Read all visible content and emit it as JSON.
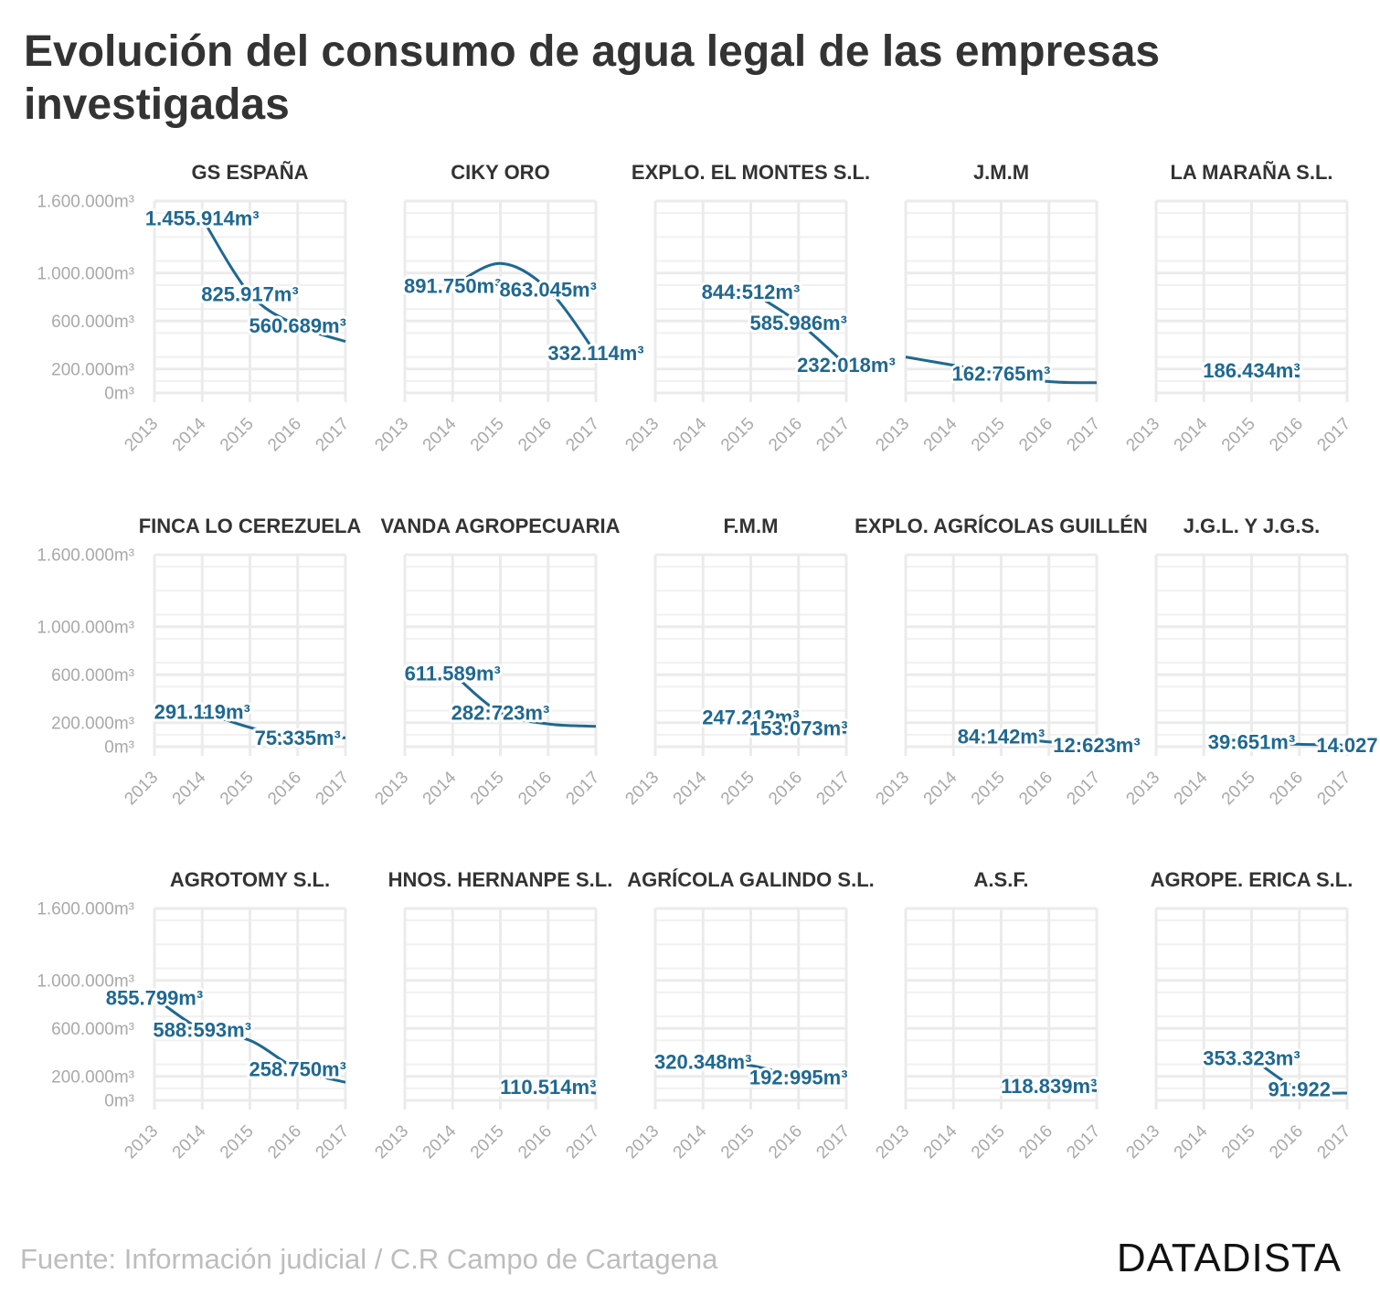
{
  "title": "Evolución del consumo de agua legal de las empresas investigadas",
  "source": "Fuente: Información judicial / C.R Campo de Cartagena",
  "logo": "DATADISTA",
  "colors": {
    "line": "#1f6891",
    "label": "#1f6891",
    "grid": "#ebebeb",
    "axis_text": "#a9a9a9",
    "panel_title": "#333333"
  },
  "chart_data": {
    "type": "line",
    "layout": "small-multiples",
    "grid": true,
    "x_ticks": [
      "2013",
      "2014",
      "2015",
      "2016",
      "2017"
    ],
    "y_ticks": [
      0,
      200000,
      600000,
      1000000,
      1600000
    ],
    "y_tick_labels": [
      "0m³",
      "200.000m³",
      "600.000m³",
      "1.000.000m³",
      "1.600.000m³"
    ],
    "ylim": [
      0,
      1600000
    ],
    "xlim": [
      2013,
      2017
    ],
    "panels": [
      {
        "title": "GS ESPAÑA",
        "x": [
          2014,
          2015,
          2016,
          2017
        ],
        "values": [
          1455914,
          825917,
          560689,
          430000
        ],
        "labels": [
          {
            "text": "1.455.914m³",
            "at": 0
          },
          {
            "text": "825.917m³",
            "at": 1
          },
          {
            "text": "560.689m³",
            "at": 2
          }
        ]
      },
      {
        "title": "CIKY ORO",
        "x": [
          2014,
          2015,
          2016,
          2017
        ],
        "values": [
          891750,
          1080000,
          863045,
          332114
        ],
        "labels": [
          {
            "text": "891.750m³",
            "at": 0
          },
          {
            "text": "863.045m³",
            "at": 2
          },
          {
            "text": "332.114m³",
            "at": 3
          }
        ]
      },
      {
        "title": "EXPLO. EL MONTES S.L.",
        "x": [
          2015,
          2016,
          2017
        ],
        "values": [
          844512,
          585986,
          232018
        ],
        "labels": [
          {
            "text": "844:512m³",
            "at": 0
          },
          {
            "text": "585.986m³",
            "at": 1
          },
          {
            "text": "232:018m³",
            "at": 2
          }
        ]
      },
      {
        "title": "J.M.M",
        "x": [
          2013,
          2015,
          2016,
          2017
        ],
        "values": [
          300000,
          162765,
          95000,
          85000
        ],
        "labels": [
          {
            "text": "162:765m³",
            "at": 1
          }
        ]
      },
      {
        "title": "LA MARAÑA S.L.",
        "x": [
          2015,
          2016
        ],
        "values": [
          186434,
          140000
        ],
        "labels": [
          {
            "text": "186.434m³",
            "at": 0
          }
        ]
      },
      {
        "title": "FINCA LO CEREZUELA",
        "x": [
          2014,
          2015,
          2016,
          2017
        ],
        "values": [
          291119,
          160000,
          75335,
          75000
        ],
        "labels": [
          {
            "text": "291.119m³",
            "at": 0
          },
          {
            "text": "75.335m³",
            "at": 2
          }
        ]
      },
      {
        "title": "VANDA AGROPECUARIA",
        "x": [
          2014,
          2015,
          2016,
          2017
        ],
        "values": [
          611589,
          282723,
          190000,
          170000
        ],
        "labels": [
          {
            "text": "611.589m³",
            "at": 0
          },
          {
            "text": "282:723m³",
            "at": 1
          }
        ]
      },
      {
        "title": "F.M.M",
        "x": [
          2015,
          2016,
          2017
        ],
        "values": [
          247212,
          153073,
          120000
        ],
        "labels": [
          {
            "text": "247.212m³",
            "at": 0
          },
          {
            "text": "153:073m³",
            "at": 1
          }
        ]
      },
      {
        "title": "EXPLO. AGRÍCOLAS GUILLÉN",
        "x": [
          2015,
          2016,
          2017
        ],
        "values": [
          84142,
          40000,
          12623
        ],
        "labels": [
          {
            "text": "84:142m³",
            "at": 0
          },
          {
            "text": "12:623m³",
            "at": 2
          }
        ]
      },
      {
        "title": "J.G.L. Y J.G.S.",
        "x": [
          2015,
          2016,
          2017
        ],
        "values": [
          39651,
          20000,
          14027
        ],
        "labels": [
          {
            "text": "39:651m³",
            "at": 0
          },
          {
            "text": "14.027",
            "at": 2
          }
        ]
      },
      {
        "title": "AGROTOMY S.L.",
        "x": [
          2013,
          2014,
          2015,
          2016,
          2017
        ],
        "values": [
          855799,
          588593,
          500000,
          258750,
          150000
        ],
        "labels": [
          {
            "text": "855.799m³",
            "at": 0
          },
          {
            "text": "588:593m³",
            "at": 1
          },
          {
            "text": "258.750m³",
            "at": 3
          }
        ]
      },
      {
        "title": "HNOS. HERNANPE S.L.",
        "x": [
          2016,
          2017
        ],
        "values": [
          110514,
          60000
        ],
        "labels": [
          {
            "text": "110.514m³",
            "at": 0
          }
        ]
      },
      {
        "title": "AGRÍCOLA GALINDO S.L.",
        "x": [
          2014,
          2015,
          2016
        ],
        "values": [
          320348,
          290000,
          192995
        ],
        "labels": [
          {
            "text": "320.348m³",
            "at": 0
          },
          {
            "text": "192:995m³",
            "at": 2
          }
        ]
      },
      {
        "title": "A.S.F.",
        "x": [
          2016,
          2017
        ],
        "values": [
          118839,
          80000
        ],
        "labels": [
          {
            "text": "118.839m³",
            "at": 0
          }
        ]
      },
      {
        "title": "AGROPE. ERICA S.L.",
        "x": [
          2015,
          2016,
          2017
        ],
        "values": [
          353323,
          91922,
          60000
        ],
        "labels": [
          {
            "text": "353.323m³",
            "at": 0
          },
          {
            "text": "91:922",
            "at": 1
          }
        ]
      }
    ]
  }
}
